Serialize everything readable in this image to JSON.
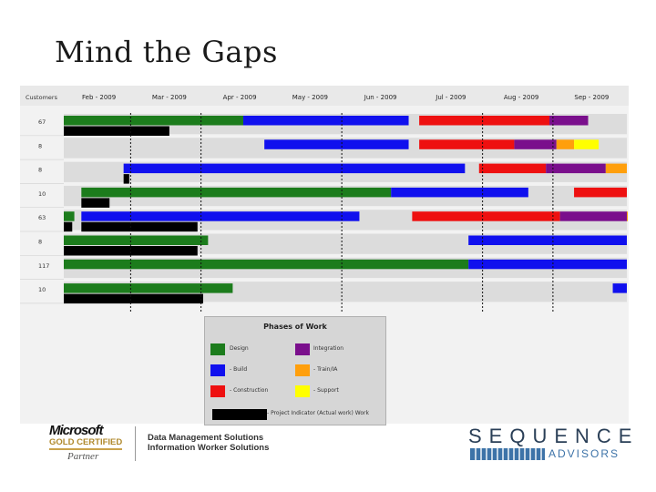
{
  "slide": {
    "title": "Mind the Gaps"
  },
  "chart_data": {
    "type": "gantt",
    "header_label": "Customers",
    "months": [
      "Feb - 2009",
      "Mar - 2009",
      "Apr - 2009",
      "May - 2009",
      "Jun - 2009",
      "Jul - 2009",
      "Aug - 2009",
      "Sep - 2009"
    ],
    "x_start": 0,
    "x_end": 8,
    "rows": [
      {
        "label": "67",
        "bars": [
          {
            "phase": "design",
            "start": 0,
            "end": 2.55
          },
          {
            "phase": "build",
            "start": 2.55,
            "end": 4.9
          },
          {
            "phase": "construction",
            "start": 5.05,
            "end": 6.9
          },
          {
            "phase": "integration",
            "start": 6.9,
            "end": 7.45
          }
        ],
        "project_indicator": [
          0,
          1.5
        ]
      },
      {
        "label": "8",
        "bars": [
          {
            "phase": "build",
            "start": 2.85,
            "end": 4.9
          },
          {
            "phase": "construction",
            "start": 5.05,
            "end": 6.4
          },
          {
            "phase": "integration",
            "start": 6.4,
            "end": 7.0
          },
          {
            "phase": "training",
            "start": 7.0,
            "end": 7.25
          },
          {
            "phase": "support",
            "start": 7.25,
            "end": 7.6
          }
        ]
      },
      {
        "label": "8",
        "bars": [
          {
            "phase": "build",
            "start": 0.85,
            "end": 5.7
          },
          {
            "phase": "construction",
            "start": 5.9,
            "end": 6.85
          },
          {
            "phase": "integration",
            "start": 6.85,
            "end": 7.7
          },
          {
            "phase": "training",
            "start": 7.7,
            "end": 8.0
          }
        ],
        "project_indicator": [
          0.85,
          0.93
        ]
      },
      {
        "label": "10",
        "bars": [
          {
            "phase": "design",
            "start": 0.25,
            "end": 4.65
          },
          {
            "phase": "build",
            "start": 4.65,
            "end": 6.6
          },
          {
            "phase": "construction",
            "start": 7.25,
            "end": 8.0
          }
        ],
        "project_indicator": [
          0.25,
          0.65
        ]
      },
      {
        "label": "63",
        "bars": [
          {
            "phase": "design",
            "start": 0,
            "end": 0.15
          },
          {
            "phase": "build",
            "start": 0.25,
            "end": 4.2
          },
          {
            "phase": "construction",
            "start": 4.95,
            "end": 7.05
          },
          {
            "phase": "integration",
            "start": 7.05,
            "end": 8.0
          },
          {
            "phase": "training",
            "start": 8.0,
            "end": 8.15
          }
        ],
        "project_indicator": [
          0,
          0.12
        ],
        "project_indicator_2": [
          0.25,
          1.9
        ]
      },
      {
        "label": "8",
        "bars": [
          {
            "phase": "design",
            "start": 0,
            "end": 2.05
          },
          {
            "phase": "build",
            "start": 5.75,
            "end": 8.0
          }
        ],
        "project_indicator": [
          0,
          1.9
        ]
      },
      {
        "label": "117",
        "bars": [
          {
            "phase": "design",
            "start": 0,
            "end": 5.75
          },
          {
            "phase": "build",
            "start": 5.75,
            "end": 8.0
          }
        ]
      },
      {
        "label": "10",
        "bars": [
          {
            "phase": "design",
            "start": 0,
            "end": 2.4
          },
          {
            "phase": "build",
            "start": 7.8,
            "end": 8.0
          }
        ],
        "project_indicator": [
          0,
          1.98
        ]
      }
    ],
    "dashed_markers": [
      0.95,
      1.95,
      3.95,
      5.95,
      6.95
    ],
    "legend": {
      "title": "Phases of Work",
      "items": [
        {
          "key": "design",
          "label": "Design",
          "color": "#1c7c1c"
        },
        {
          "key": "integration",
          "label": "Integration",
          "color": "#7a0f8c"
        },
        {
          "key": "build",
          "label": "- Build",
          "color": "#1010ee"
        },
        {
          "key": "training",
          "label": "- Train/IA",
          "color": "#ff9f0c"
        },
        {
          "key": "construction",
          "label": "- Construction",
          "color": "#ee1010"
        },
        {
          "key": "support",
          "label": "- Support",
          "color": "#ffff00"
        },
        {
          "key": "project",
          "label": "- Project Indicator (Actual work) Work",
          "color": "#000000"
        }
      ]
    }
  },
  "footer": {
    "ms_name": "Microsoft",
    "ms_tier": "GOLD CERTIFIED",
    "ms_partner": "Partner",
    "competency_1": "Data Management Solutions",
    "competency_2": "Information Worker Solutions",
    "company_name": "SEQUENCE",
    "company_sub": "ADVISORS",
    "colors": {
      "navy": "#2a3f57",
      "blue": "#3d73a8",
      "gold": "#c9a24a"
    }
  }
}
